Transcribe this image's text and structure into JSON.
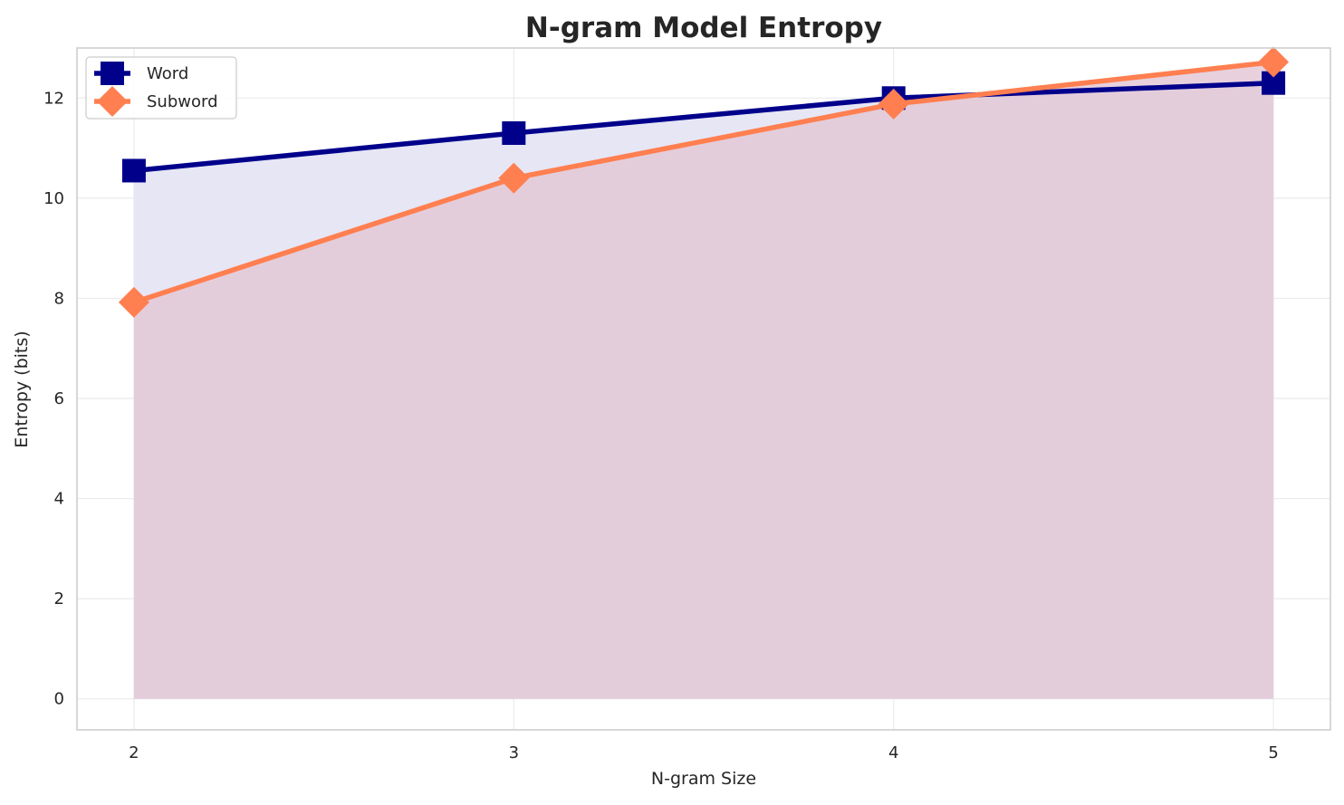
{
  "chart_data": {
    "type": "line",
    "title": "N-gram Model Entropy",
    "xlabel": "N-gram Size",
    "ylabel": "Entropy (bits)",
    "x": [
      2,
      3,
      4,
      5
    ],
    "xlim": [
      1.85,
      5.15
    ],
    "ylim": [
      -0.62,
      13.0
    ],
    "yticks": [
      0,
      2,
      4,
      6,
      8,
      10,
      12
    ],
    "grid": true,
    "legend_position": "top-left",
    "series": [
      {
        "name": "Word",
        "values": [
          10.55,
          11.3,
          12.0,
          12.3
        ],
        "color": "#00008b",
        "marker": "square",
        "fill_color": "#e6e6f5"
      },
      {
        "name": "Subword",
        "values": [
          7.92,
          10.4,
          11.88,
          12.72
        ],
        "color": "#ff7f50",
        "marker": "diamond",
        "fill_color": "#e3c7d6"
      }
    ]
  }
}
